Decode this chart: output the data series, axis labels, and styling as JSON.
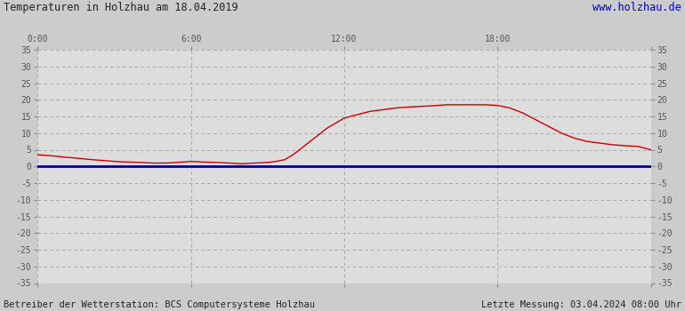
{
  "title": "Temperaturen in Holzhau am 18.04.2019",
  "title_url": "www.holzhau.de",
  "footer_left": "Betreiber der Wetterstation: BCS Computersysteme Holzhau",
  "footer_right": "Letzte Messung: 03.04.2024 08:00 Uhr",
  "bg_color": "#cccccc",
  "plot_bg_color": "#dddddd",
  "grid_color": "#aaaaaa",
  "line_color_temp": "#cc0000",
  "line_color_zero": "#000080",
  "ylim": [
    -35,
    35
  ],
  "yticks": [
    -35,
    -30,
    -25,
    -20,
    -15,
    -10,
    -5,
    0,
    5,
    10,
    15,
    20,
    25,
    30,
    35
  ],
  "xlim": [
    0,
    1440
  ],
  "xticks": [
    0,
    360,
    720,
    1080,
    1440
  ],
  "xtick_labels": [
    "0:00",
    "6:00",
    "12:00",
    "18:00",
    ""
  ],
  "temp_x": [
    0,
    20,
    40,
    60,
    90,
    120,
    150,
    180,
    210,
    240,
    270,
    300,
    330,
    360,
    390,
    420,
    450,
    480,
    510,
    540,
    560,
    580,
    600,
    620,
    640,
    660,
    680,
    700,
    720,
    750,
    780,
    810,
    840,
    870,
    900,
    930,
    960,
    990,
    1020,
    1050,
    1080,
    1110,
    1140,
    1170,
    1200,
    1230,
    1260,
    1290,
    1320,
    1350,
    1380,
    1410,
    1440
  ],
  "temp_y": [
    3.5,
    3.3,
    3.1,
    2.8,
    2.5,
    2.1,
    1.8,
    1.5,
    1.3,
    1.2,
    1.0,
    1.0,
    1.2,
    1.5,
    1.3,
    1.2,
    1.0,
    0.8,
    1.0,
    1.2,
    1.5,
    2.0,
    3.5,
    5.5,
    7.5,
    9.5,
    11.5,
    13.0,
    14.5,
    15.5,
    16.5,
    17.0,
    17.5,
    17.8,
    18.0,
    18.2,
    18.5,
    18.5,
    18.5,
    18.5,
    18.3,
    17.5,
    16.0,
    14.0,
    12.0,
    10.0,
    8.5,
    7.5,
    7.0,
    6.5,
    6.2,
    6.0,
    5.0
  ]
}
